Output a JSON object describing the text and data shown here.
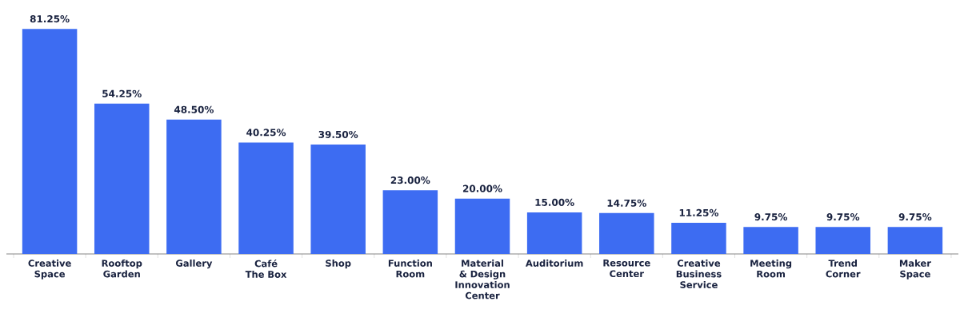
{
  "chart_data": {
    "type": "bar",
    "categories": [
      "Creative Space",
      "Rooftop Garden",
      "Gallery",
      "Café The Box",
      "Shop",
      "Function Room",
      "Material & Design Innovation Center",
      "Auditorium",
      "Resource Center",
      "Creative Business Service",
      "Meeting Room",
      "Trend Corner",
      "Maker Space"
    ],
    "values": [
      81.25,
      54.25,
      48.5,
      40.25,
      39.5,
      23.0,
      20.0,
      15.0,
      14.75,
      11.25,
      9.75,
      9.75,
      9.75
    ],
    "value_labels": [
      "81.25%",
      "54.25%",
      "48.50%",
      "40.25%",
      "39.50%",
      "23.00%",
      "20.00%",
      "15.00%",
      "14.75%",
      "11.25%",
      "9.75%",
      "9.75%",
      "9.75%"
    ],
    "color": "#3d6cf2"
  }
}
